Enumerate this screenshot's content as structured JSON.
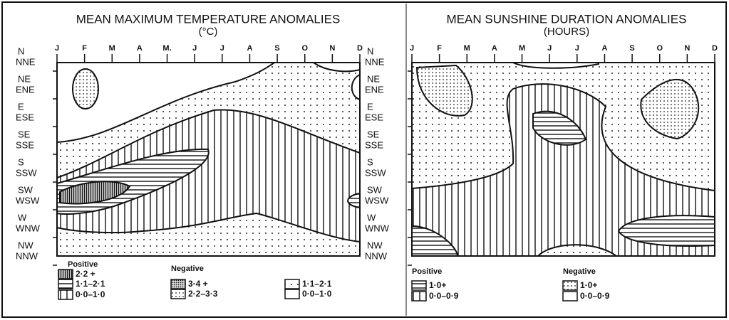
{
  "panels": [
    {
      "title": "MEAN MAXIMUM TEMPERATURE ANOMALIES",
      "unit": "(°C)",
      "months": [
        "J",
        "F",
        "M",
        "A",
        "M.",
        "J",
        "J",
        "A",
        "S",
        "O",
        "N",
        "D"
      ],
      "directions": [
        "N",
        "NNE",
        "NE",
        "ENE",
        "E",
        "ESE",
        "SE",
        "SSE",
        "S",
        "SSW",
        "SW",
        "WSW",
        "W",
        "WNW",
        "NW",
        "NNW"
      ],
      "legend": [
        {
          "title": "Positive",
          "items": [
            "2·2 +",
            "1·1–2·1",
            "0·0–1·0"
          ]
        },
        {
          "title": "Negative",
          "items": [
            "3·4 +",
            "2·2–3·3",
            "1·1–2·1",
            "0·0–1·0"
          ]
        }
      ]
    },
    {
      "title": "MEAN SUNSHINE DURATION ANOMALIES",
      "unit": "(HOURS)",
      "months": [
        "J",
        "F",
        "M",
        "A",
        "M",
        "J",
        "J",
        "A",
        "S",
        "O",
        "N",
        "D"
      ],
      "directions": [
        "N",
        "NNE",
        "NE",
        "ENE",
        "E",
        "ESE",
        "SE",
        "SSE",
        "S",
        "SSW",
        "SW",
        "WSW",
        "W",
        "WNW",
        "NW",
        "NNW"
      ],
      "legend": [
        {
          "title": "Positive",
          "items": [
            "1·0+",
            "0·0–0·9"
          ]
        },
        {
          "title": "Negative",
          "items": [
            "1·0+",
            "0·0–0·9"
          ]
        }
      ]
    }
  ]
}
